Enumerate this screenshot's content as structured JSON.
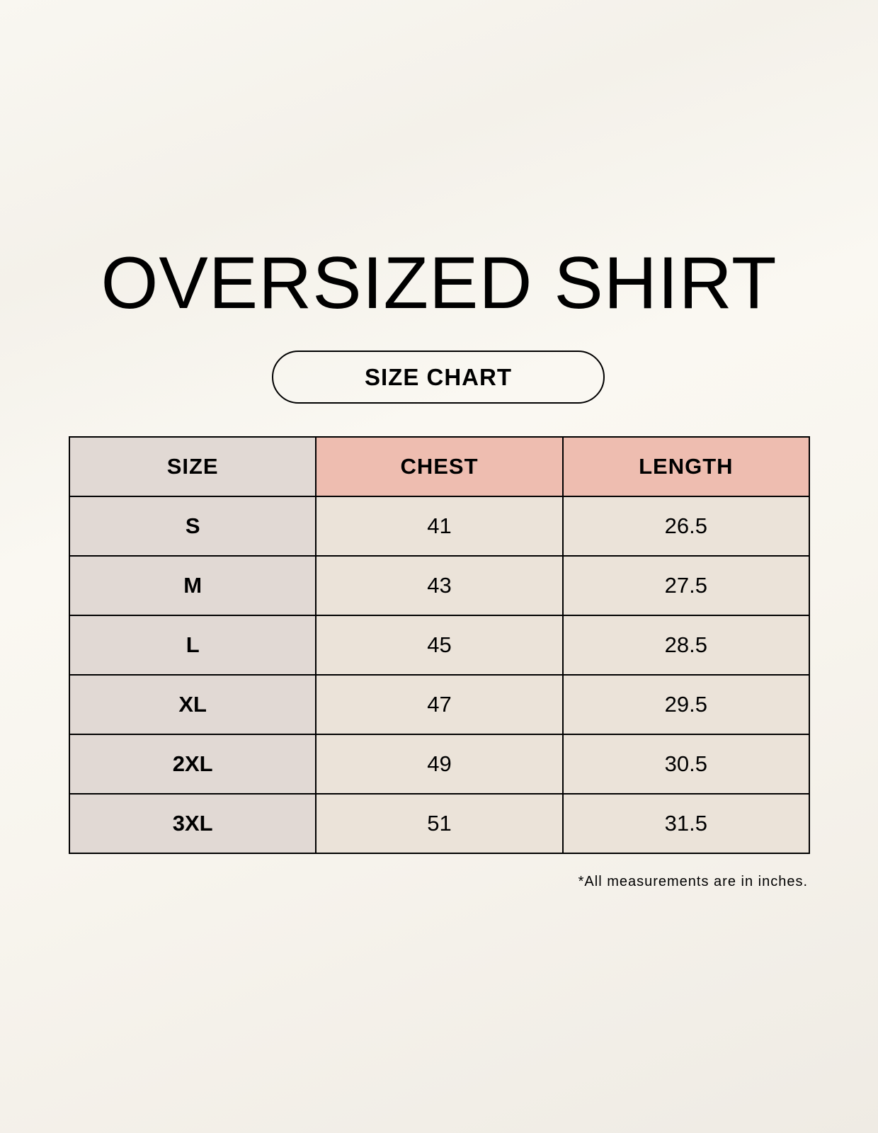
{
  "title": "OVERSIZED SHIRT",
  "subtitle": "SIZE CHART",
  "table": {
    "headers": [
      "SIZE",
      "CHEST",
      "LENGTH"
    ],
    "rows": [
      [
        "S",
        "41",
        "26.5"
      ],
      [
        "M",
        "43",
        "27.5"
      ],
      [
        "L",
        "45",
        "28.5"
      ],
      [
        "XL",
        "47",
        "29.5"
      ],
      [
        "2XL",
        "49",
        "30.5"
      ],
      [
        "3XL",
        "51",
        "31.5"
      ]
    ]
  },
  "footnote": "*All measurements are in inches.",
  "colors": {
    "size_column": "#e1d9d4",
    "header_accent": "#eebdb0",
    "cell": "#ebe3d9"
  }
}
